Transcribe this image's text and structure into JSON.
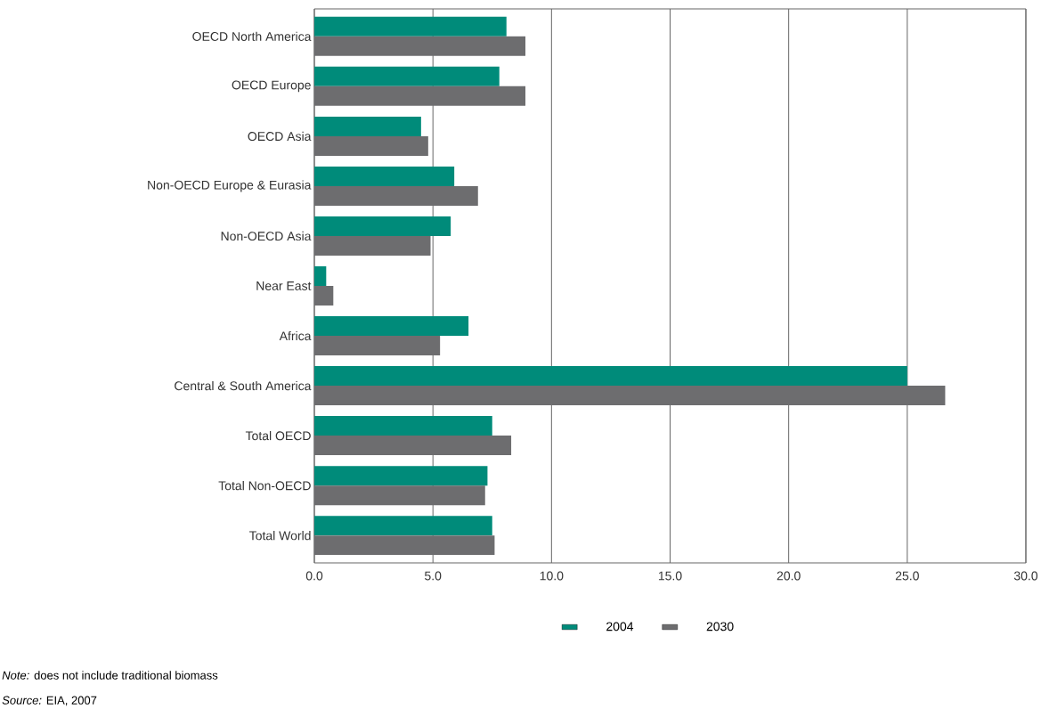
{
  "chart_data": {
    "type": "bar",
    "orientation": "horizontal",
    "categories": [
      "OECD North America",
      "OECD  Europe",
      "OECD  Asia",
      "Non-OECD Europe & Eurasia",
      "Non-OECD  Asia",
      "Near East",
      "Africa",
      "Central & South America",
      "Total OECD",
      "Total Non-OECD",
      "Total World"
    ],
    "series": [
      {
        "name": "2004",
        "color": "#008b7a",
        "values": [
          8.1,
          7.8,
          4.5,
          5.9,
          5.75,
          0.5,
          6.5,
          25.0,
          7.5,
          7.3,
          7.5
        ]
      },
      {
        "name": "2030",
        "color": "#6d6d6f",
        "values": [
          8.9,
          8.9,
          4.8,
          6.9,
          4.9,
          0.8,
          5.3,
          26.6,
          8.3,
          7.2,
          7.6
        ]
      }
    ],
    "xlim": [
      0,
      30
    ],
    "xticks": [
      {
        "value": 0,
        "label": "0.0"
      },
      {
        "value": 5,
        "label": "5.0"
      },
      {
        "value": 10,
        "label": "10.0"
      },
      {
        "value": 15,
        "label": "15.0"
      },
      {
        "value": 20,
        "label": "20.0"
      },
      {
        "value": 25,
        "label": "25.0"
      },
      {
        "value": 30,
        "label": "30.0"
      }
    ],
    "grid": "x",
    "legend": "bottom",
    "annotations": [
      "*Note:* does not include traditional biomass",
      "*Source:* EIA, 2007"
    ]
  }
}
